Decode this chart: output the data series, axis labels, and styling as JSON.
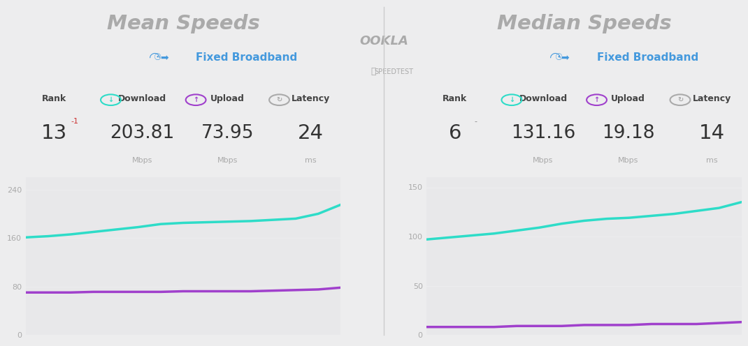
{
  "bg_color": "#ededee",
  "chart_bg": "#e8e8ea",
  "mean_title": "Mean Speeds",
  "median_title": "Median Speeds",
  "mean_rank": "13",
  "mean_rank_change": "-1",
  "mean_download": "203.81",
  "mean_upload": "73.95",
  "mean_latency": "24",
  "mean_unit_dl": "Mbps",
  "mean_unit_ul": "Mbps",
  "mean_unit_lat": "ms",
  "median_rank": "6",
  "median_rank_change": "-",
  "median_download": "131.16",
  "median_upload": "19.18",
  "median_latency": "14",
  "median_unit_dl": "Mbps",
  "median_unit_ul": "Mbps",
  "median_unit_lat": "ms",
  "mean_download_data": [
    161,
    163,
    166,
    170,
    174,
    178,
    183,
    185,
    186,
    187,
    188,
    190,
    192,
    200,
    215
  ],
  "mean_upload_data": [
    70,
    70,
    70,
    71,
    71,
    71,
    71,
    72,
    72,
    72,
    72,
    73,
    74,
    75,
    78
  ],
  "median_download_data": [
    97,
    99,
    101,
    103,
    106,
    109,
    113,
    116,
    118,
    119,
    121,
    123,
    126,
    129,
    135
  ],
  "median_upload_data": [
    8,
    8,
    8,
    8,
    9,
    9,
    9,
    10,
    10,
    10,
    11,
    11,
    11,
    12,
    13
  ],
  "download_color": "#2edcc8",
  "upload_color": "#a040cc",
  "title_color": "#aaaaaa",
  "header_label_color": "#444444",
  "value_color": "#333333",
  "unit_color": "#aaaaaa",
  "rank_change_color_mean": "#cc3333",
  "rank_change_color_median": "#888888",
  "download_icon_color": "#2edcc8",
  "upload_icon_color": "#a040cc",
  "latency_icon_color": "#aaaaaa",
  "wifi_icon_color": "#4499dd",
  "broadband_text_color": "#4499dd",
  "mean_ylim": [
    0,
    260
  ],
  "mean_yticks": [
    0,
    80,
    160,
    240
  ],
  "median_ylim": [
    0,
    160
  ],
  "median_yticks": [
    0,
    50,
    100,
    150
  ],
  "line_width": 2.5,
  "divider_color": "#cccccc"
}
